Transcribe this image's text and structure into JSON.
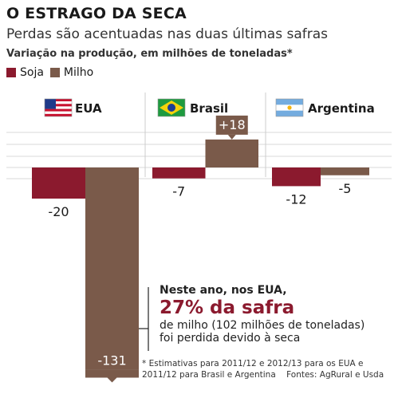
{
  "header": {
    "title": "O ESTRAGO DA SECA",
    "subtitle": "Perdas são acentuadas nas duas últimas safras",
    "unit_label": "Variação na produção, em milhões de toneladas*"
  },
  "colors": {
    "soja": "#8b1a2e",
    "milho": "#7a5a4a",
    "grid": "#cccccc"
  },
  "chart_data": {
    "type": "bar",
    "title": "O ESTRAGO DA SECA",
    "subtitle": "Perdas são acentuadas nas duas últimas safras",
    "ylabel": "Variação na produção, em milhões de toneladas*",
    "categories": [
      "EUA",
      "Brasil",
      "Argentina"
    ],
    "series": [
      {
        "name": "Soja",
        "values": [
          -20,
          -7,
          -12
        ]
      },
      {
        "name": "Milho",
        "values": [
          -131,
          18,
          -5
        ]
      }
    ],
    "value_labels": [
      [
        "-20",
        "-7",
        "-12"
      ],
      [
        "-131",
        "+18",
        "-5"
      ]
    ],
    "legend": [
      "Soja",
      "Milho"
    ],
    "legend_position": "top-left",
    "grid": true,
    "ylim": [
      -135,
      30
    ]
  },
  "flags": [
    "us-flag-icon",
    "brazil-flag-icon",
    "argentina-flag-icon"
  ],
  "annotation": {
    "line1": "Neste ano, nos EUA,",
    "highlight": "27% da safra",
    "line3": "de milho (102 milhões de toneladas)",
    "line4": "foi perdida devido à seca"
  },
  "footer": {
    "note_line1": "* Estimativas para 2011/12 e 2012/13 para os EUA e",
    "note_line2": "2011/12 para Brasil e Argentina",
    "sources": "Fontes: AgRural e Usda"
  }
}
